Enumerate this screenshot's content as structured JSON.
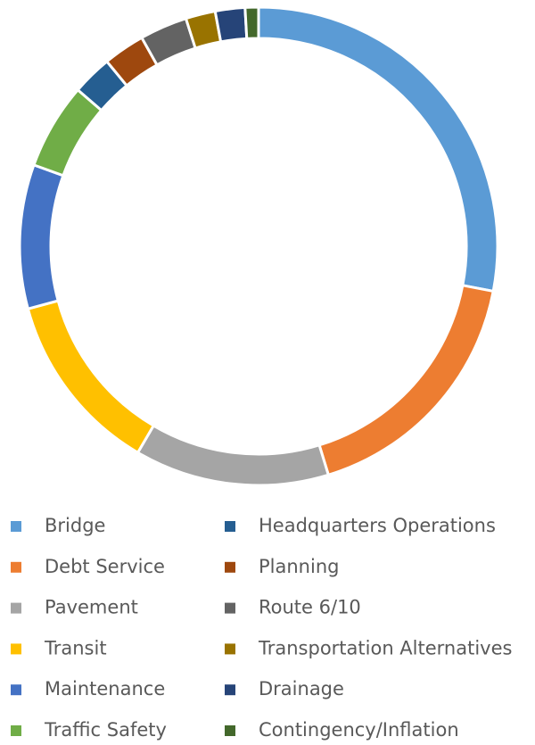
{
  "chart_data": {
    "type": "donut",
    "categories": [
      "Bridge",
      "Debt Service",
      "Pavement",
      "Transit",
      "Maintenance",
      "Traffic Safety",
      "Headquarters Operations",
      "Planning",
      "Route 6/10",
      "Transportation Alternatives",
      "Drainage",
      "Contingency/Inflation"
    ],
    "values": [
      27.9,
      17.2,
      13.1,
      12.3,
      9.7,
      5.8,
      2.7,
      2.8,
      3.2,
      2.0,
      2.0,
      0.9
    ],
    "colors": [
      "#5b9bd5",
      "#ed7d31",
      "#a5a5a5",
      "#ffc000",
      "#4472c4",
      "#70ad47",
      "#255e91",
      "#9e480e",
      "#636363",
      "#997300",
      "#264478",
      "#43682b"
    ],
    "legend": "bottom"
  }
}
